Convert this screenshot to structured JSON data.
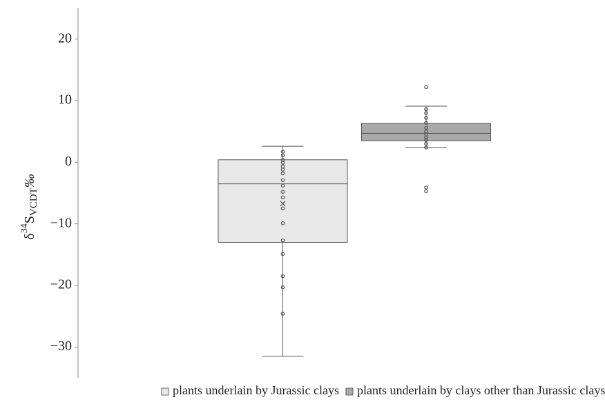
{
  "chart_data": {
    "type": "box",
    "y_label": {
      "prefix": "δ",
      "sup": "34",
      "main": "S",
      "sub": "VCDT",
      "suffix": "‰"
    },
    "ylim": [
      -35,
      25
    ],
    "yticks": [
      {
        "value": -30,
        "label": "−30"
      },
      {
        "value": -20,
        "label": "−20"
      },
      {
        "value": -10,
        "label": "−10"
      },
      0,
      10,
      20
    ],
    "series": [
      {
        "name": "plants underlain by Jurassic clays",
        "color": "#e8e8e8",
        "whisker_low": -31.5,
        "q1": -13,
        "median": -3.5,
        "q3": 0.4,
        "whisker_high": 2.6,
        "mean": -6.7,
        "points": [
          1.7,
          1.1,
          0.4,
          -0.1,
          -0.7,
          -1.2,
          -1.8,
          -2.9,
          -3.8,
          -4.8,
          -5.7,
          -7.5,
          -9.9,
          -12.7,
          -14.9,
          -18.5,
          -20.3,
          -24.6
        ]
      },
      {
        "name": "plants underlain by clays other than Jurassic clays",
        "color": "#a9a9a9",
        "whisker_low": 2.4,
        "q1": 3.5,
        "median": 4.7,
        "q3": 6.3,
        "whisker_high": 9.1,
        "points": [
          12.2,
          8.6,
          8.0,
          7.2,
          6.4,
          5.6,
          5.0,
          4.5,
          4.0,
          3.6,
          3.0,
          2.4,
          -4.1,
          -4.7
        ]
      }
    ]
  }
}
